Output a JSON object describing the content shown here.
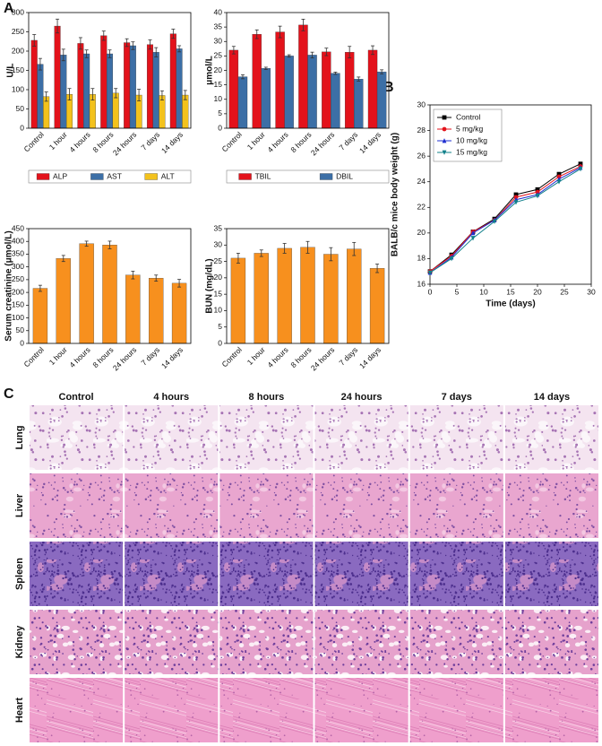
{
  "panel_labels": [
    "A",
    "B",
    "C"
  ],
  "chart_data": [
    {
      "type": "bar",
      "y_label": "U/L",
      "categories": [
        "Control",
        "1 hour",
        "4 hours",
        "8 hours",
        "24 hours",
        "7 days",
        "14 days"
      ],
      "series": [
        {
          "name": "ALP",
          "color": "#e3121b",
          "values": [
            228,
            265,
            220,
            240,
            222,
            217,
            245
          ],
          "errors": [
            15,
            18,
            15,
            12,
            10,
            12,
            12
          ]
        },
        {
          "name": "AST",
          "color": "#3c6fa6",
          "values": [
            166,
            190,
            193,
            193,
            214,
            197,
            206
          ],
          "errors": [
            15,
            15,
            10,
            10,
            10,
            12,
            8
          ]
        },
        {
          "name": "ALT",
          "color": "#f3c21c",
          "values": [
            82,
            88,
            88,
            91,
            86,
            85,
            86
          ],
          "errors": [
            12,
            15,
            15,
            12,
            15,
            12,
            12
          ]
        }
      ],
      "ylim": [
        0,
        300
      ],
      "yticks": [
        0,
        50,
        100,
        150,
        200,
        250,
        300
      ],
      "legend": "bottom"
    },
    {
      "type": "bar",
      "y_label": "μmol/L",
      "categories": [
        "Control",
        "1 hour",
        "4 hours",
        "8 hours",
        "24 hours",
        "7 days",
        "14 days"
      ],
      "series": [
        {
          "name": "TBIL",
          "color": "#e3121b",
          "values": [
            27,
            32.5,
            33.3,
            35.7,
            26.4,
            26.3,
            27
          ],
          "errors": [
            1.3,
            1.5,
            2,
            2,
            1.3,
            2,
            1.5
          ]
        },
        {
          "name": "DBIL",
          "color": "#3c6fa6",
          "values": [
            17.8,
            20.7,
            25,
            25.3,
            19,
            17,
            19.5
          ],
          "errors": [
            0.7,
            0.4,
            0.4,
            1,
            0.4,
            0.7,
            0.7
          ]
        }
      ],
      "ylim": [
        0,
        40
      ],
      "yticks": [
        0,
        5,
        10,
        15,
        20,
        25,
        30,
        35,
        40
      ],
      "legend": "bottom"
    },
    {
      "type": "bar",
      "y_label": "Serum creatinine (μmol/L)",
      "categories": [
        "Control",
        "1 hour",
        "4 hours",
        "8 hours",
        "24 hours",
        "7 days",
        "14 days"
      ],
      "values": [
        216,
        333,
        391,
        386,
        268,
        256,
        236
      ],
      "errors": [
        12,
        12,
        10,
        15,
        15,
        12,
        15
      ],
      "color": "#f7901e",
      "ylim": [
        0,
        450
      ],
      "yticks": [
        0,
        50,
        100,
        150,
        200,
        250,
        300,
        350,
        400,
        450
      ]
    },
    {
      "type": "bar",
      "y_label": "BUN (mg/dL)",
      "categories": [
        "Control",
        "1 hour",
        "4 hours",
        "8 hours",
        "24 hours",
        "7 days",
        "14 days"
      ],
      "values": [
        26,
        27.5,
        29,
        29.3,
        27.2,
        28.8,
        22.9
      ],
      "errors": [
        1.5,
        1,
        1.5,
        1.8,
        2,
        2,
        1.3
      ],
      "color": "#f7901e",
      "ylim": [
        0,
        35
      ],
      "yticks": [
        0,
        5,
        10,
        15,
        20,
        25,
        30,
        35
      ]
    },
    {
      "type": "line",
      "x_label": "Time (days)",
      "y_label": "BALB/c mice body weight (g)",
      "x": [
        0,
        4,
        8,
        12,
        16,
        20,
        24,
        28
      ],
      "series": [
        {
          "name": "Control",
          "color": "#000000",
          "marker": "square",
          "values": [
            17,
            18.3,
            20.1,
            21.1,
            23,
            23.4,
            24.6,
            25.4
          ]
        },
        {
          "name": "5 mg/kg",
          "color": "#e3121b",
          "marker": "circle",
          "values": [
            17,
            18.2,
            20.1,
            21,
            22.8,
            23.2,
            24.4,
            25.2
          ]
        },
        {
          "name": "10 mg/kg",
          "color": "#1f2fd0",
          "marker": "triangle-up",
          "values": [
            16.9,
            18.1,
            20,
            21,
            22.6,
            23,
            24.2,
            25.1
          ]
        },
        {
          "name": "15 mg/kg",
          "color": "#11808a",
          "marker": "triangle-down",
          "values": [
            16.9,
            18,
            19.6,
            20.9,
            22.4,
            22.9,
            24,
            25
          ]
        }
      ],
      "xlim": [
        0,
        30
      ],
      "xticks": [
        0,
        5,
        10,
        15,
        20,
        25,
        30
      ],
      "ylim": [
        16,
        30
      ],
      "yticks": [
        16,
        18,
        20,
        22,
        24,
        26,
        28,
        30
      ],
      "legend": "upper left"
    }
  ],
  "histology": {
    "columns": [
      "Control",
      "4 hours",
      "8 hours",
      "24 hours",
      "7 days",
      "14 days"
    ],
    "rows": [
      "Lung",
      "Liver",
      "Spleen",
      "Kidney",
      "Heart"
    ]
  }
}
